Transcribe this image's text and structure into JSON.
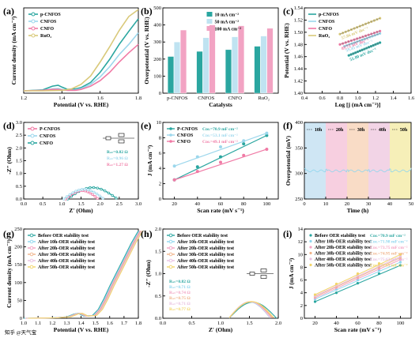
{
  "colors": {
    "teal": "#2aa6a0",
    "lightblue": "#9cd7ec",
    "pink": "#f07aa5",
    "khaki": "#d9c97a",
    "c0": "#2aa6a0",
    "c1": "#8fd6ee",
    "c2": "#f2a3c3",
    "c3": "#f0b38a",
    "c4": "#e8c0e0",
    "c5": "#f2d56a",
    "bar1": "#2aa6a0",
    "bar2": "#bfe3f1",
    "bar3": "#f2a3c3"
  },
  "watermark": "知乎 @天气宝",
  "chart_data": [
    {
      "type": "line",
      "panel": "(a)",
      "xlabel": "Potential (V vs. RHE)",
      "ylabel": "Current density (mA cm⁻²)",
      "xlim": [
        1.2,
        1.8
      ],
      "xticks": [
        "1.2",
        "1.4",
        "1.6",
        "1.8"
      ],
      "series": [
        {
          "name": "p-CNFOS",
          "x": [
            1.2,
            1.3,
            1.35,
            1.38,
            1.4,
            1.43,
            1.47,
            1.5,
            1.55,
            1.6,
            1.65,
            1.7,
            1.75,
            1.8
          ],
          "y": [
            0,
            2,
            10,
            12,
            8,
            3,
            4,
            7,
            18,
            40,
            68,
            100,
            128,
            155
          ]
        },
        {
          "name": "CNFOS",
          "x": [
            1.2,
            1.3,
            1.35,
            1.38,
            1.4,
            1.43,
            1.47,
            1.5,
            1.55,
            1.6,
            1.65,
            1.7,
            1.75,
            1.8
          ],
          "y": [
            0,
            1,
            4,
            5,
            3,
            1,
            2,
            5,
            14,
            30,
            52,
            78,
            100,
            125
          ]
        },
        {
          "name": "CNFO",
          "x": [
            1.2,
            1.3,
            1.35,
            1.38,
            1.4,
            1.43,
            1.47,
            1.5,
            1.55,
            1.6,
            1.65,
            1.7,
            1.75,
            1.8
          ],
          "y": [
            0,
            1,
            3,
            3,
            2,
            1,
            1,
            3,
            10,
            22,
            40,
            62,
            82,
            100
          ]
        },
        {
          "name": "RuO₂",
          "x": [
            1.2,
            1.3,
            1.4,
            1.45,
            1.5,
            1.55,
            1.6,
            1.65,
            1.7,
            1.75,
            1.8
          ],
          "y": [
            0,
            0,
            1,
            4,
            14,
            32,
            62,
            95,
            130,
            160,
            175
          ]
        }
      ]
    },
    {
      "type": "bar",
      "panel": "(b)",
      "xlabel": "Catalysts",
      "ylabel": "Overpotential (V vs. RHE)",
      "ylim": [
        0,
        500
      ],
      "yticks": [
        "0",
        "100",
        "200",
        "300",
        "400",
        "500"
      ],
      "categories": [
        "p-CNFOS",
        "CNFOS",
        "CNFO",
        "RuO₂"
      ],
      "series": [
        {
          "name": "10 mA cm⁻²",
          "values": [
            215,
            245,
            255,
            275
          ]
        },
        {
          "name": "50 mA cm⁻²",
          "values": [
            300,
            325,
            330,
            335
          ]
        },
        {
          "name": "100 mA cm⁻²",
          "values": [
            370,
            400,
            395,
            380
          ]
        }
      ]
    },
    {
      "type": "scatter",
      "panel": "(c)",
      "xlabel": "Log [j (mA cm⁻²)]",
      "ylabel": "Potential (V vs. RHE)",
      "xlim": [
        0.4,
        1.6
      ],
      "ylim": [
        1.4,
        1.54
      ],
      "xticks": [
        "0.4",
        "0.6",
        "0.8",
        "1.0",
        "1.2",
        "1.4",
        "1.6"
      ],
      "yticks": [
        "1.40",
        "1.42",
        "1.44",
        "1.46",
        "1.48",
        "1.50",
        "1.52",
        "1.54"
      ],
      "series": [
        {
          "name": "p-CNFOS",
          "x0": 0.9,
          "x1": 1.25,
          "y0": 1.462,
          "y1": 1.483,
          "annotation": "51.80 mV dec⁻¹"
        },
        {
          "name": "CNFOS",
          "x0": 0.85,
          "x1": 1.25,
          "y0": 1.477,
          "y1": 1.498,
          "annotation": "59.45 mV dec⁻¹"
        },
        {
          "name": "CNFO",
          "x0": 0.8,
          "x1": 1.25,
          "y0": 1.48,
          "y1": 1.502,
          "annotation": "89.72 mV dec⁻¹"
        },
        {
          "name": "RuO₂",
          "x0": 0.8,
          "x1": 1.25,
          "y0": 1.497,
          "y1": 1.523,
          "annotation": "57.86 mV dec⁻¹"
        }
      ]
    },
    {
      "type": "scatter",
      "panel": "(d)",
      "xlabel": "Z′ (Ohm)",
      "ylabel": "-Z″ (Ohm)",
      "xlim": [
        0,
        3
      ],
      "ylim": [
        0,
        3
      ],
      "xticks": [
        "0.0",
        "0.5",
        "1.0",
        "1.5",
        "2.0",
        "2.5",
        "3.0"
      ],
      "yticks": [
        "0.0",
        "0.5",
        "1.0",
        "1.5",
        "2.0",
        "2.5",
        "3.0"
      ],
      "series": [
        {
          "name": "P-CNFOS",
          "start": 1.1,
          "end": 1.95,
          "peak": 0.33,
          "annotation": "Rₛₜ=0.82 Ω"
        },
        {
          "name": "CNFOS",
          "start": 1.05,
          "end": 2.1,
          "peak": 0.38,
          "annotation": "Rₛₜ=0.96 Ω"
        },
        {
          "name": "CNFO",
          "start": 1.15,
          "end": 2.45,
          "peak": 0.45,
          "annotation": "Rₛₜ=1.27 Ω"
        }
      ]
    },
    {
      "type": "scatter",
      "panel": "(e)",
      "xlabel": "Scan rate (mV s⁻¹)",
      "ylabel": "J (mA cm⁻²)",
      "xlim": [
        10,
        110
      ],
      "ylim": [
        0,
        10
      ],
      "xticks": [
        "20",
        "40",
        "60",
        "80",
        "100"
      ],
      "yticks": [
        "0",
        "2",
        "4",
        "6",
        "8",
        "10"
      ],
      "x": [
        20,
        40,
        60,
        80,
        100
      ],
      "series": [
        {
          "name": "P-CNFOS",
          "values": [
            2.5,
            4.2,
            5.5,
            7.2,
            8.3
          ],
          "annotation": "Cᴅʟ=70.9 mF cm⁻²"
        },
        {
          "name": "CNFOS",
          "values": [
            4.3,
            5.5,
            6.8,
            7.6,
            8.6
          ],
          "annotation": "Cᴅʟ=53.1 mF cm⁻²"
        },
        {
          "name": "CNFO",
          "values": [
            2.5,
            3.6,
            4.8,
            5.7,
            6.5
          ],
          "annotation": "Cᴅʟ=49.1 mF cm⁻²"
        }
      ]
    },
    {
      "type": "line",
      "panel": "(f)",
      "xlabel": "Time (h)",
      "ylabel": "Overpotential (mV)",
      "xlim": [
        0,
        50
      ],
      "ylim": [
        250,
        400
      ],
      "xticks": [
        "0",
        "10",
        "20",
        "30",
        "40",
        "50"
      ],
      "yticks": [
        "250",
        "300",
        "350",
        "400"
      ],
      "bands": [
        "10h",
        "20h",
        "30h",
        "40h",
        "50h"
      ],
      "level": 305
    },
    {
      "type": "line",
      "panel": "(g)",
      "xlabel": "Potential (V vs. RHE)",
      "ylabel": "Current density (mA cm⁻²)",
      "xlim": [
        1.0,
        1.8
      ],
      "ylim": [
        0,
        250
      ],
      "xticks": [
        "1.0",
        "1.1",
        "1.2",
        "1.3",
        "1.4",
        "1.5",
        "1.6",
        "1.7",
        "1.8"
      ],
      "yticks": [
        "0",
        "50",
        "100",
        "150",
        "200",
        "250"
      ],
      "series": [
        {
          "name": "Before OER stability test"
        },
        {
          "name": "After 10h-OER stability test"
        },
        {
          "name": "After 20h-OER stability test"
        },
        {
          "name": "After 30h-OER stability test"
        },
        {
          "name": "After 40h-OER stability test"
        },
        {
          "name": "After 50h-OER stability test"
        }
      ],
      "x": [
        1.0,
        1.2,
        1.3,
        1.35,
        1.38,
        1.42,
        1.48,
        1.52,
        1.56,
        1.6,
        1.65,
        1.7,
        1.75,
        1.8
      ],
      "y": [
        0,
        1,
        4,
        12,
        14,
        6,
        8,
        25,
        55,
        90,
        130,
        170,
        210,
        245
      ]
    },
    {
      "type": "scatter",
      "panel": "(h)",
      "xlabel": "Z′ (Ohm)",
      "ylabel": "-Z″ (Ohm)",
      "xlim": [
        0,
        2
      ],
      "ylim": [
        0,
        2
      ],
      "xticks": [
        "0.0",
        "0.5",
        "1.0",
        "1.5",
        "2.0"
      ],
      "yticks": [
        "0.0",
        "0.5",
        "1.0",
        "1.5",
        "2.0"
      ],
      "series": [
        {
          "name": "Before OER stability test",
          "annotation": "Rₛₜ=0.82 Ω",
          "start": 1.15,
          "end": 1.97
        },
        {
          "name": "After 10h-OER stability test",
          "annotation": "Rₛₜ=0.71 Ω",
          "start": 1.15,
          "end": 1.86
        },
        {
          "name": "After 20h-OER stability test",
          "annotation": "Rₛₜ=0.74 Ω",
          "start": 1.15,
          "end": 1.89
        },
        {
          "name": "After 30h-OER stability test",
          "annotation": "Rₛₜ=0.75 Ω",
          "start": 1.15,
          "end": 1.9
        },
        {
          "name": "After 40h-OER stability test",
          "annotation": "Rₛₜ=0.71 Ω",
          "start": 1.15,
          "end": 1.86
        },
        {
          "name": "After 50h-OER stability test",
          "annotation": "Rₛₜ=0.77 Ω",
          "start": 1.15,
          "end": 1.92
        }
      ]
    },
    {
      "type": "scatter",
      "panel": "(i)",
      "xlabel": "Scan rate (mV s⁻¹)",
      "ylabel": "J (mA cm⁻²)",
      "xlim": [
        10,
        110
      ],
      "ylim": [
        0,
        14
      ],
      "xticks": [
        "20",
        "40",
        "60",
        "80",
        "100"
      ],
      "yticks": [
        "0",
        "2",
        "4",
        "6",
        "8",
        "10",
        "12",
        "14"
      ],
      "x": [
        20,
        40,
        60,
        80,
        100
      ],
      "series": [
        {
          "name": "Before OER stability test",
          "annotation": "Cᴅʟ=70.9 mF cm⁻²",
          "values": [
            2.6,
            4.0,
            5.5,
            7.0,
            8.3
          ]
        },
        {
          "name": "After 10h-OER stability test",
          "annotation": "Cᴅʟ=71.98 mF cm⁻²",
          "values": [
            3.0,
            4.5,
            6.0,
            7.5,
            8.8
          ]
        },
        {
          "name": "After 20h-OER stability test",
          "annotation": "Cᴅʟ=73.75 mF cm⁻²",
          "values": [
            3.2,
            4.8,
            6.3,
            7.8,
            9.2
          ]
        },
        {
          "name": "After 30h-OER stability test",
          "annotation": "Cᴅʟ=74.95 mF cm⁻²",
          "values": [
            3.4,
            5.0,
            6.6,
            8.1,
            9.5
          ]
        },
        {
          "name": "After 40h-OER stability test",
          "annotation": "Cᴅʟ=75.63 mF cm⁻²",
          "values": [
            3.5,
            5.2,
            6.8,
            8.3,
            9.7
          ]
        },
        {
          "name": "After 50h-OER stability test",
          "annotation": "Cᴅʟ=77.05 mF cm⁻²",
          "values": [
            3.7,
            5.4,
            7.0,
            8.6,
            10.0
          ]
        }
      ]
    }
  ]
}
